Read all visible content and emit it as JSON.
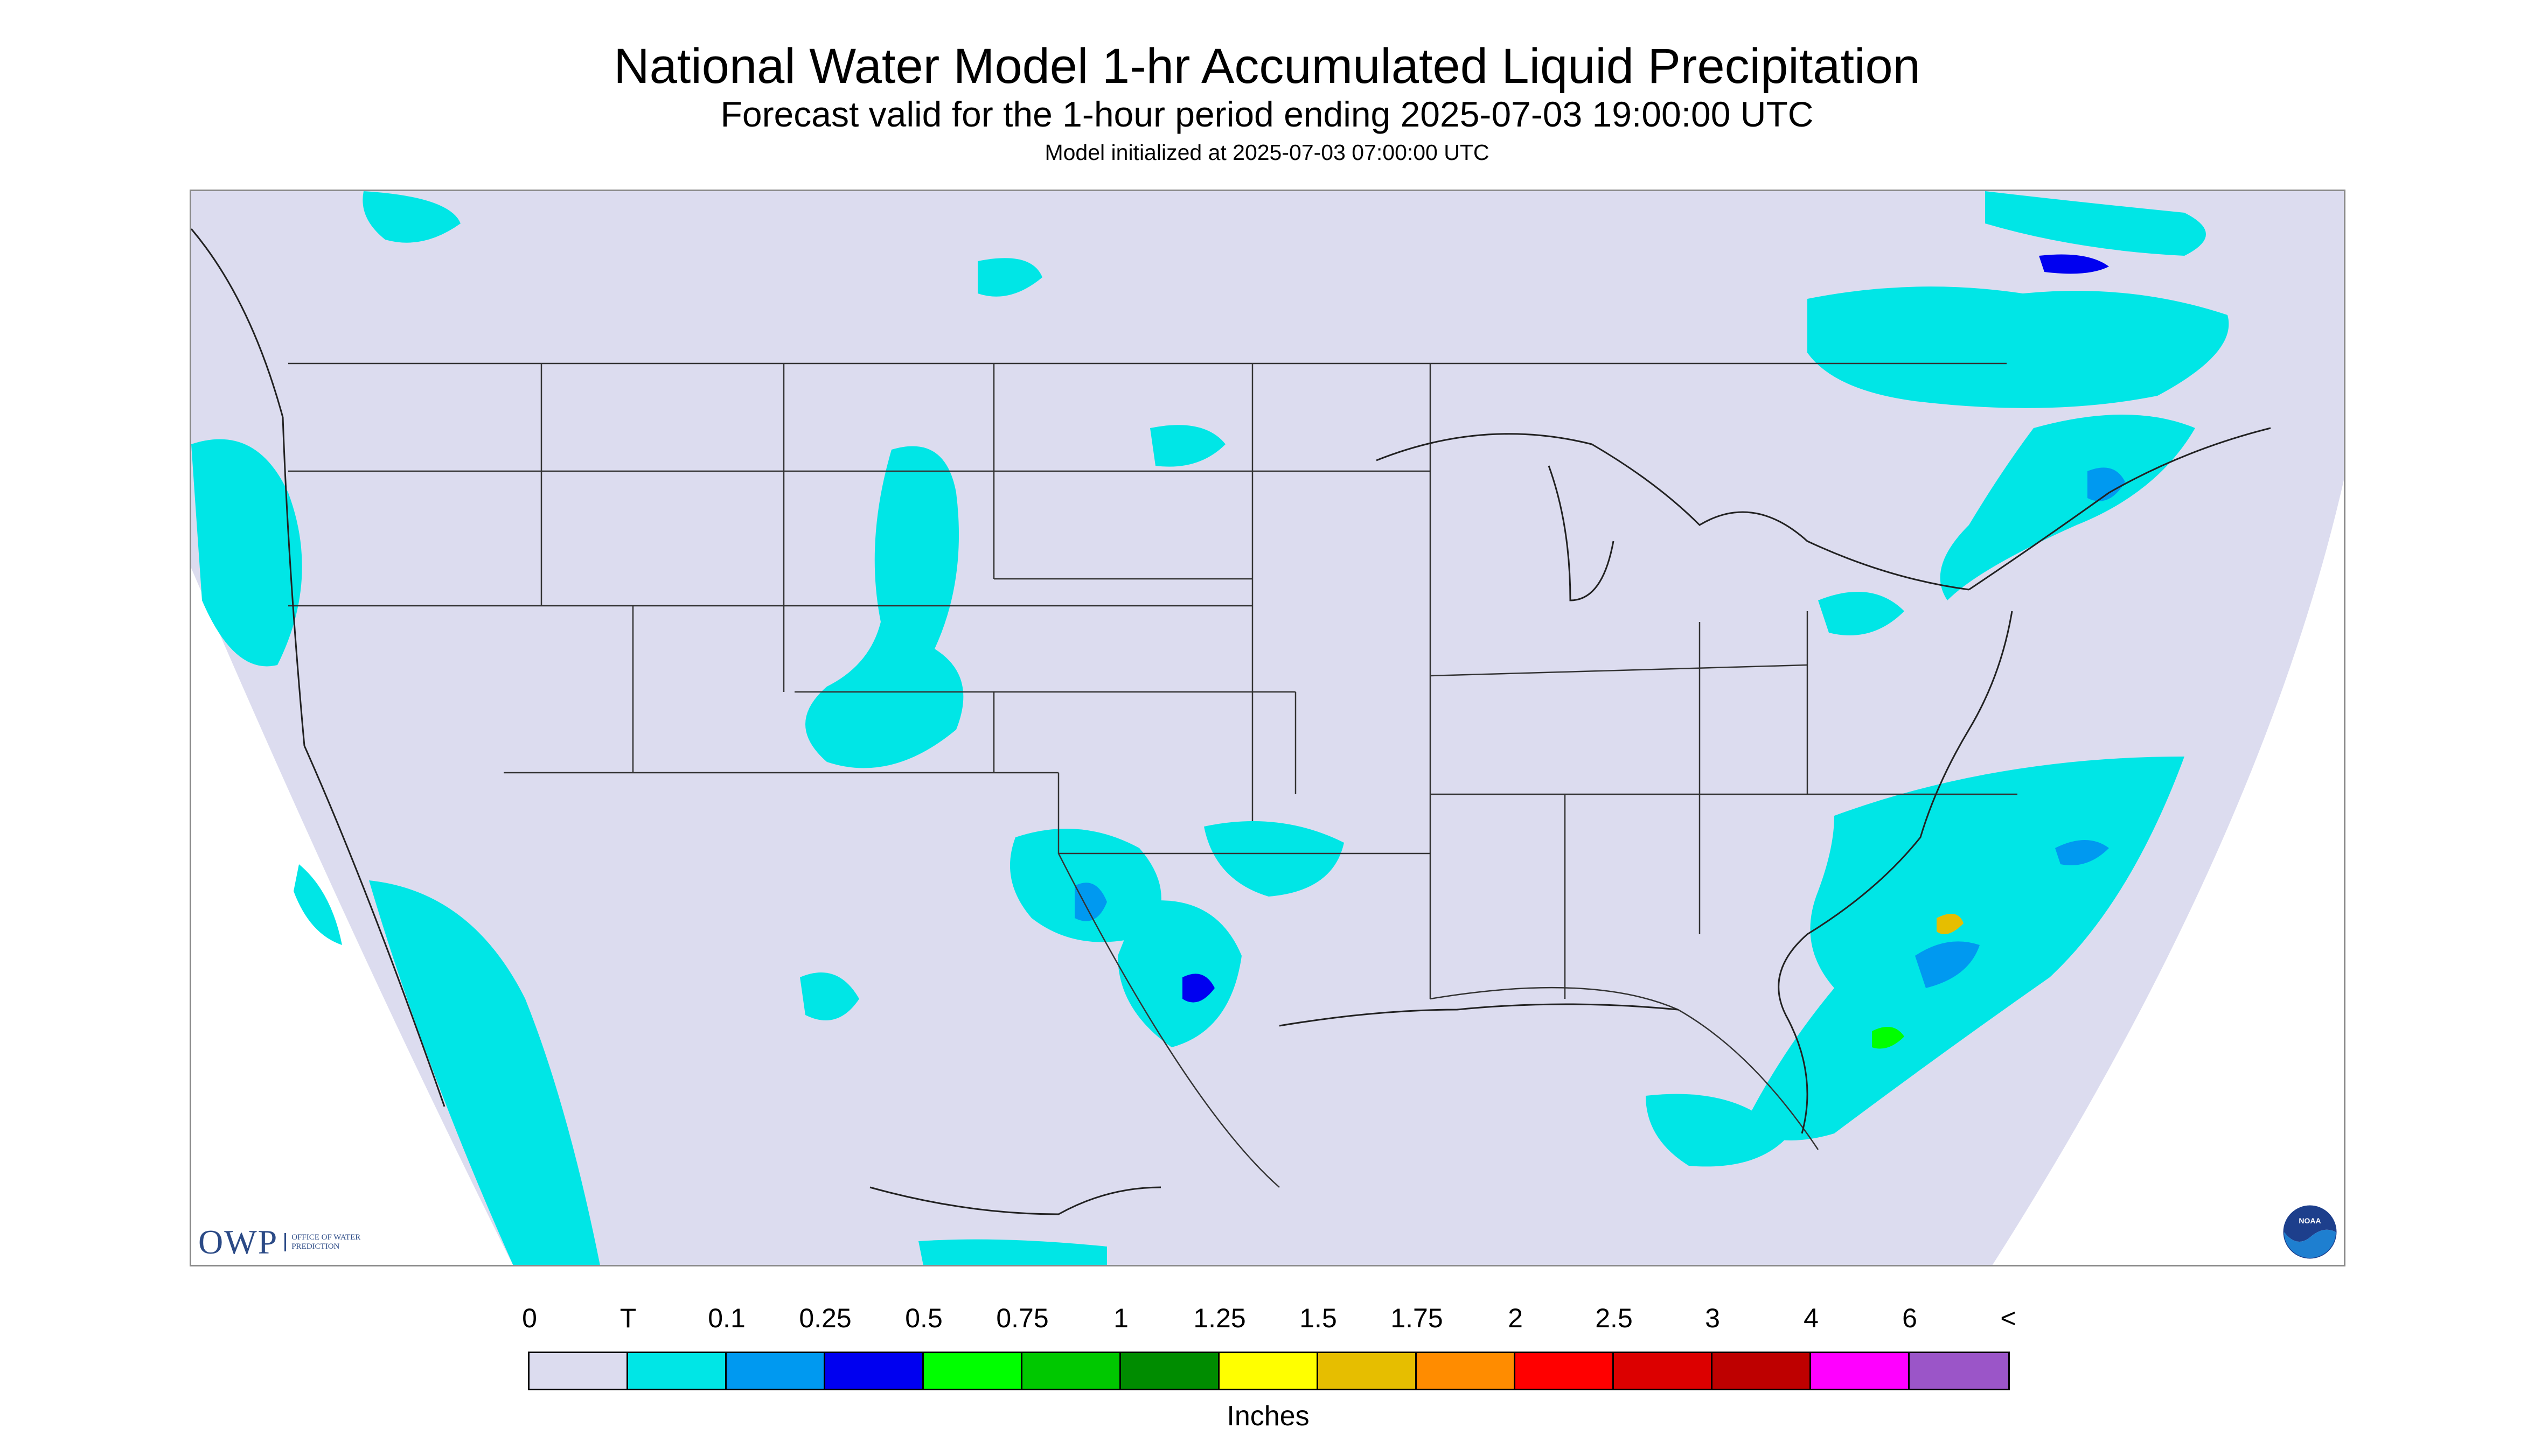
{
  "header": {
    "title": "National Water Model 1-hr Accumulated Liquid Precipitation",
    "subtitle": "Forecast valid for the 1-hour period ending 2025-07-03 19:00:00 UTC",
    "init_line": "Model initialized at 2025-07-03 07:00:00 UTC"
  },
  "map": {
    "background_color": "#dcdcef",
    "outside_color": "#ffffff",
    "boundary_color": "#333333"
  },
  "logos": {
    "owp_mark": "OWP",
    "owp_text": "Office of Water Prediction",
    "noaa_text": "NOAA",
    "noaa_icon": "noaa-seal-icon"
  },
  "legend": {
    "labels": [
      "0",
      "T",
      "0.1",
      "0.25",
      "0.5",
      "0.75",
      "1",
      "1.25",
      "1.5",
      "1.75",
      "2",
      "2.5",
      "3",
      "4",
      "6",
      "<"
    ],
    "colors": [
      "#dcdcef",
      "#00e6e6",
      "#0099f0",
      "#0000f0",
      "#00ff00",
      "#00c800",
      "#008c00",
      "#ffff00",
      "#e6be00",
      "#ff8c00",
      "#ff0000",
      "#dc0000",
      "#be0000",
      "#ff00ff",
      "#9b55c8"
    ],
    "units": "Inches"
  }
}
